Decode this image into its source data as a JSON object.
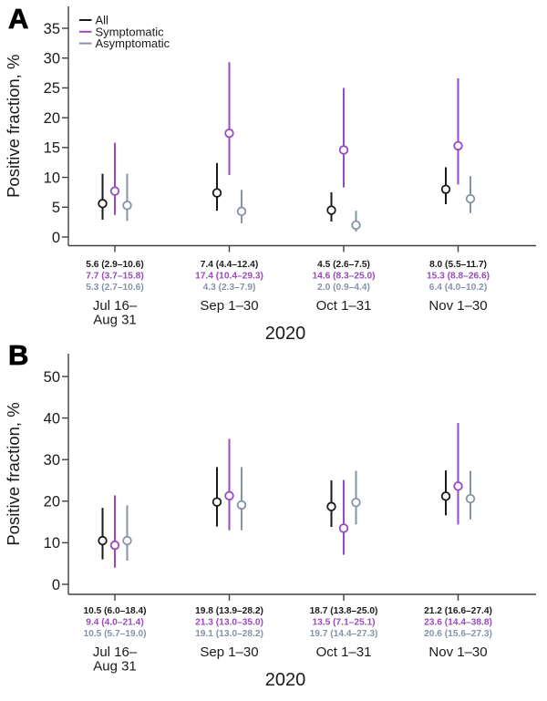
{
  "chart_data": [
    {
      "type": "scatter",
      "panel_label": "A",
      "ylabel": "Positive fraction, %",
      "xlabel": "2020",
      "ylim": [
        0,
        35
      ],
      "yticks": [
        0,
        5,
        10,
        15,
        20,
        25,
        30,
        35
      ],
      "categories": [
        [
          "Jul 16–",
          "Aug 31"
        ],
        [
          "Sep 1–30"
        ],
        [
          "Oct 1–31"
        ],
        [
          "Nov 1–30"
        ]
      ],
      "legend_position": "top-left",
      "legend_visible": true,
      "series": [
        {
          "name": "All",
          "color": "#1a1a1a",
          "points": [
            {
              "est": 5.6,
              "lo": 2.9,
              "hi": 10.6,
              "label": "5.6 (2.9–10.6)"
            },
            {
              "est": 7.4,
              "lo": 4.4,
              "hi": 12.4,
              "label": "7.4 (4.4–12.4)"
            },
            {
              "est": 4.5,
              "lo": 2.6,
              "hi": 7.5,
              "label": "4.5 (2.6–7.5)"
            },
            {
              "est": 8.0,
              "lo": 5.5,
              "hi": 11.7,
              "label": "8.0 (5.5–11.7)"
            }
          ]
        },
        {
          "name": "Symptomatic",
          "color": "#9a4abc",
          "points": [
            {
              "est": 7.7,
              "lo": 3.7,
              "hi": 15.8,
              "label": "7.7 (3.7–15.8)"
            },
            {
              "est": 17.4,
              "lo": 10.4,
              "hi": 29.3,
              "label": "17.4 (10.4–29.3)"
            },
            {
              "est": 14.6,
              "lo": 8.3,
              "hi": 25.0,
              "label": "14.6 (8.3–25.0)"
            },
            {
              "est": 15.3,
              "lo": 8.8,
              "hi": 26.6,
              "label": "15.3 (8.8–26.6)"
            }
          ]
        },
        {
          "name": "Asymptomatic",
          "color": "#8493a9",
          "points": [
            {
              "est": 5.3,
              "lo": 2.7,
              "hi": 10.6,
              "label": "5.3 (2.7–10.6)"
            },
            {
              "est": 4.3,
              "lo": 2.3,
              "hi": 7.9,
              "label": "4.3 (2.3–7.9)"
            },
            {
              "est": 2.0,
              "lo": 0.9,
              "hi": 4.4,
              "label": "2.0 (0.9–4.4)"
            },
            {
              "est": 6.4,
              "lo": 4.0,
              "hi": 10.2,
              "label": "6.4 (4.0–10.2)"
            }
          ]
        }
      ]
    },
    {
      "type": "scatter",
      "panel_label": "B",
      "ylabel": "Positive fraction, %",
      "xlabel": "2020",
      "ylim": [
        0,
        50
      ],
      "yticks": [
        0,
        10,
        20,
        30,
        40,
        50
      ],
      "categories": [
        [
          "Jul 16–",
          "Aug 31"
        ],
        [
          "Sep 1–30"
        ],
        [
          "Oct 1–31"
        ],
        [
          "Nov 1–30"
        ]
      ],
      "legend_visible": false,
      "series": [
        {
          "name": "All",
          "color": "#1a1a1a",
          "points": [
            {
              "est": 10.5,
              "lo": 6.0,
              "hi": 18.4,
              "label": "10.5 (6.0–18.4)"
            },
            {
              "est": 19.8,
              "lo": 13.9,
              "hi": 28.2,
              "label": "19.8 (13.9–28.2)"
            },
            {
              "est": 18.7,
              "lo": 13.8,
              "hi": 25.0,
              "label": "18.7 (13.8–25.0)"
            },
            {
              "est": 21.2,
              "lo": 16.6,
              "hi": 27.4,
              "label": "21.2 (16.6–27.4)"
            }
          ]
        },
        {
          "name": "Symptomatic",
          "color": "#9a4abc",
          "points": [
            {
              "est": 9.4,
              "lo": 4.0,
              "hi": 21.4,
              "label": "9.4 (4.0–21.4)"
            },
            {
              "est": 21.3,
              "lo": 13.0,
              "hi": 35.0,
              "label": "21.3 (13.0–35.0)"
            },
            {
              "est": 13.5,
              "lo": 7.1,
              "hi": 25.1,
              "label": "13.5 (7.1–25.1)"
            },
            {
              "est": 23.6,
              "lo": 14.4,
              "hi": 38.8,
              "label": "23.6 (14.4–38.8)"
            }
          ]
        },
        {
          "name": "Asymptomatic",
          "color": "#8493a9",
          "points": [
            {
              "est": 10.5,
              "lo": 5.7,
              "hi": 19.0,
              "label": "10.5 (5.7–19.0)"
            },
            {
              "est": 19.1,
              "lo": 13.0,
              "hi": 28.2,
              "label": "19.1 (13.0–28.2)"
            },
            {
              "est": 19.7,
              "lo": 14.4,
              "hi": 27.3,
              "label": "19.7 (14.4–27.3)"
            },
            {
              "est": 20.6,
              "lo": 15.6,
              "hi": 27.3,
              "label": "20.6 (15.6–27.3)"
            }
          ]
        }
      ]
    }
  ],
  "style": {
    "axis_color": "#404040",
    "text_color": "#1a1a1a"
  }
}
